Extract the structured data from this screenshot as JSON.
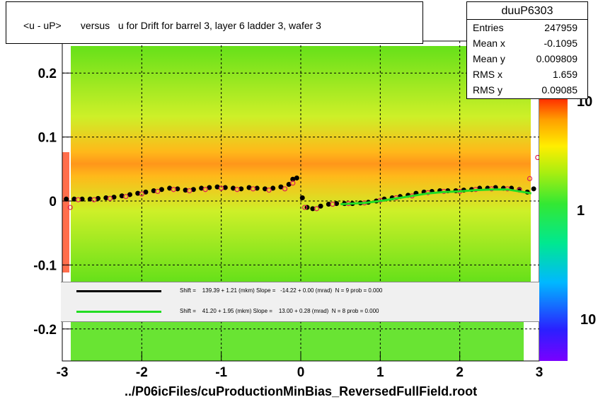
{
  "title": "<u - uP>       versus   u for Drift for barrel 3, layer 6 ladder 3, wafer 3",
  "stats": {
    "name": "duuP6303",
    "rows": [
      {
        "label": "Entries",
        "value": "247959"
      },
      {
        "label": "Mean x",
        "value": "-0.1095"
      },
      {
        "label": "Mean y",
        "value": "0.009809"
      },
      {
        "label": "RMS x",
        "value": "1.659"
      },
      {
        "label": "RMS y",
        "value": "0.09085"
      }
    ]
  },
  "legend": [
    {
      "color": "#000000",
      "text": "Shift =    139.39 + 1.21 (mkm) Slope =   -14.22 + 0.00 (mrad)  N = 9 prob = 0.000"
    },
    {
      "color": "#22dd22",
      "text": "Shift =    41.20 + 1.95 (mkm) Slope =    13.00 + 0.28 (mrad)  N = 8 prob = 0.000"
    }
  ],
  "footer": "../P06icFiles/cuProductionMinBias_ReversedFullField.root",
  "colorbar": {
    "labels": [
      "10",
      "1",
      "10"
    ]
  },
  "chart_data": {
    "type": "heatmap",
    "title": "<u - uP>       versus   u for Drift for barrel 3, layer 6 ladder 3, wafer 3",
    "xlim": [
      -3,
      3
    ],
    "ylim": [
      -0.25,
      0.25
    ],
    "x_ticks": [
      "-3",
      "-2",
      "-1",
      "0",
      "1",
      "2",
      "3"
    ],
    "y_ticks": [
      "-0.2",
      "-0.1",
      "0",
      "0.1",
      "0.2"
    ],
    "grid": true,
    "series": [
      {
        "name": "profile (black)",
        "color": "#000000",
        "points": [
          [
            -2.95,
            0.003
          ],
          [
            -2.85,
            0.003
          ],
          [
            -2.75,
            0.003
          ],
          [
            -2.65,
            0.003
          ],
          [
            -2.55,
            0.004
          ],
          [
            -2.45,
            0.005
          ],
          [
            -2.35,
            0.006
          ],
          [
            -2.25,
            0.008
          ],
          [
            -2.15,
            0.01
          ],
          [
            -2.05,
            0.012
          ],
          [
            -1.95,
            0.014
          ],
          [
            -1.85,
            0.016
          ],
          [
            -1.75,
            0.018
          ],
          [
            -1.65,
            0.02
          ],
          [
            -1.55,
            0.019
          ],
          [
            -1.45,
            0.017
          ],
          [
            -1.35,
            0.018
          ],
          [
            -1.25,
            0.02
          ],
          [
            -1.15,
            0.021
          ],
          [
            -1.05,
            0.022
          ],
          [
            -0.95,
            0.021
          ],
          [
            -0.85,
            0.02
          ],
          [
            -0.75,
            0.019
          ],
          [
            -0.65,
            0.021
          ],
          [
            -0.55,
            0.02
          ],
          [
            -0.45,
            0.019
          ],
          [
            -0.35,
            0.02
          ],
          [
            -0.25,
            0.022
          ],
          [
            -0.15,
            0.026
          ],
          [
            -0.1,
            0.034
          ],
          [
            -0.05,
            0.036
          ],
          [
            0.02,
            0.005
          ],
          [
            0.08,
            -0.01
          ],
          [
            0.15,
            -0.012
          ],
          [
            0.25,
            -0.008
          ],
          [
            0.35,
            -0.005
          ],
          [
            0.45,
            -0.004
          ],
          [
            0.55,
            -0.004
          ],
          [
            0.65,
            -0.004
          ],
          [
            0.75,
            -0.003
          ],
          [
            0.85,
            -0.002
          ],
          [
            0.95,
            0.0
          ],
          [
            1.05,
            0.003
          ],
          [
            1.15,
            0.005
          ],
          [
            1.25,
            0.007
          ],
          [
            1.35,
            0.009
          ],
          [
            1.45,
            0.012
          ],
          [
            1.55,
            0.014
          ],
          [
            1.65,
            0.015
          ],
          [
            1.75,
            0.016
          ],
          [
            1.85,
            0.016
          ],
          [
            1.95,
            0.016
          ],
          [
            2.05,
            0.017
          ],
          [
            2.15,
            0.018
          ],
          [
            2.25,
            0.02
          ],
          [
            2.35,
            0.02
          ],
          [
            2.45,
            0.021
          ],
          [
            2.55,
            0.02
          ],
          [
            2.65,
            0.02
          ],
          [
            2.75,
            0.018
          ],
          [
            2.85,
            0.014
          ],
          [
            2.93,
            0.019
          ]
        ]
      },
      {
        "name": "profile (magenta)",
        "color": "#dd2255",
        "points": [
          [
            -2.9,
            -0.01
          ],
          [
            -2.8,
            0.002
          ],
          [
            -2.6,
            0.002
          ],
          [
            -2.4,
            0.004
          ],
          [
            -2.2,
            0.007
          ],
          [
            -2.0,
            0.011
          ],
          [
            -1.8,
            0.015
          ],
          [
            -1.6,
            0.018
          ],
          [
            -1.4,
            0.016
          ],
          [
            -1.2,
            0.018
          ],
          [
            -1.0,
            0.02
          ],
          [
            -0.8,
            0.018
          ],
          [
            -0.6,
            0.019
          ],
          [
            -0.4,
            0.017
          ],
          [
            -0.2,
            0.019
          ],
          [
            -0.1,
            0.028
          ],
          [
            0.05,
            -0.01
          ],
          [
            0.2,
            -0.012
          ],
          [
            0.4,
            -0.005
          ],
          [
            0.6,
            -0.004
          ],
          [
            0.8,
            -0.003
          ],
          [
            1.0,
            0.001
          ],
          [
            1.2,
            0.005
          ],
          [
            1.4,
            0.008
          ],
          [
            1.6,
            0.013
          ],
          [
            1.8,
            0.015
          ],
          [
            2.0,
            0.015
          ],
          [
            2.2,
            0.018
          ],
          [
            2.4,
            0.019
          ],
          [
            2.6,
            0.019
          ],
          [
            2.75,
            0.017
          ],
          [
            2.88,
            0.035
          ],
          [
            2.98,
            0.068
          ]
        ]
      },
      {
        "name": "fit (green)",
        "color": "#22dd22",
        "points": [
          [
            0.5,
            -0.005
          ],
          [
            0.8,
            -0.003
          ],
          [
            1.0,
            0.0
          ],
          [
            1.2,
            0.004
          ],
          [
            1.4,
            0.008
          ],
          [
            1.6,
            0.012
          ],
          [
            1.8,
            0.014
          ],
          [
            2.0,
            0.015
          ],
          [
            2.2,
            0.017
          ],
          [
            2.4,
            0.018
          ],
          [
            2.6,
            0.018
          ],
          [
            2.8,
            0.014
          ],
          [
            2.9,
            0.012
          ]
        ]
      }
    ]
  }
}
